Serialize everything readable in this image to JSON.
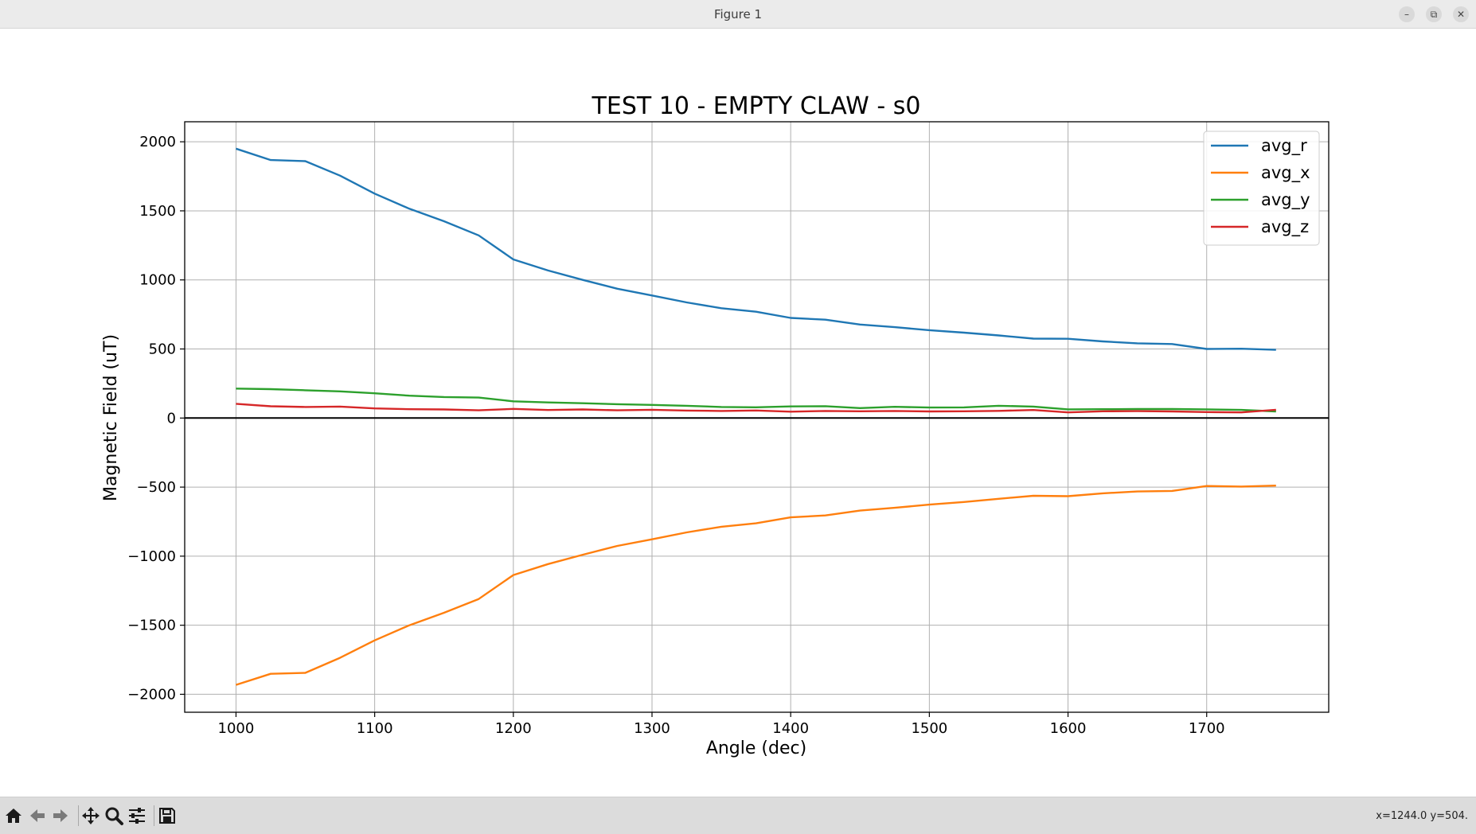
{
  "window": {
    "title": "Figure 1",
    "controls": {
      "minimize": "–",
      "maximize": "⧉",
      "close": "✕"
    }
  },
  "toolbar": {
    "buttons": [
      "home-icon",
      "back-icon",
      "forward-icon",
      "pan-icon",
      "zoom-icon",
      "configure-subplots-icon",
      "save-icon"
    ],
    "coords": "x=1244.0 y=504."
  },
  "chart_data": {
    "type": "line",
    "title": "TEST 10 - EMPTY CLAW - s0",
    "xlabel": "Angle (dec)",
    "ylabel": "Magnetic Field (uT)",
    "xlim": [
      963,
      1788
    ],
    "ylim": [
      -2130,
      2145
    ],
    "xticks": [
      1000,
      1100,
      1200,
      1300,
      1400,
      1500,
      1600,
      1700
    ],
    "yticks": [
      -2000,
      -1500,
      -1000,
      -500,
      0,
      500,
      1000,
      1500,
      2000
    ],
    "ytick_labels": [
      "−2000",
      "−1500",
      "−1000",
      "−500",
      "0",
      "500",
      "1000",
      "1500",
      "2000"
    ],
    "grid": true,
    "zero_line": true,
    "legend_position": "top-right",
    "x": [
      1000,
      1025,
      1050,
      1075,
      1100,
      1125,
      1150,
      1175,
      1200,
      1225,
      1250,
      1275,
      1300,
      1325,
      1350,
      1375,
      1400,
      1425,
      1450,
      1475,
      1500,
      1525,
      1550,
      1575,
      1600,
      1625,
      1650,
      1675,
      1700,
      1725,
      1750
    ],
    "series": [
      {
        "name": "avg_r",
        "color": "#1f77b4",
        "values": [
          1950,
          1868,
          1860,
          1755,
          1625,
          1515,
          1425,
          1322,
          1148,
          1068,
          1000,
          936,
          887,
          837,
          795,
          770,
          725,
          712,
          677,
          658,
          636,
          618,
          598,
          575,
          574,
          555,
          541,
          536,
          500,
          502,
          494
        ]
      },
      {
        "name": "avg_x",
        "color": "#ff7f0e",
        "values": [
          -1932,
          -1852,
          -1845,
          -1736,
          -1610,
          -1500,
          -1410,
          -1310,
          -1137,
          -1057,
          -990,
          -926,
          -878,
          -828,
          -787,
          -762,
          -719,
          -705,
          -670,
          -650,
          -627,
          -608,
          -585,
          -563,
          -566,
          -545,
          -532,
          -528,
          -492,
          -496,
          -489
        ]
      },
      {
        "name": "avg_y",
        "color": "#2ca02c",
        "values": [
          213,
          209,
          201,
          193,
          179,
          162,
          152,
          148,
          121,
          113,
          107,
          100,
          95,
          89,
          80,
          78,
          84,
          86,
          72,
          81,
          76,
          77,
          89,
          83,
          63,
          64,
          65,
          65,
          63,
          59,
          48
        ]
      },
      {
        "name": "avg_z",
        "color": "#d62728",
        "values": [
          103,
          85,
          80,
          83,
          70,
          64,
          62,
          56,
          66,
          58,
          62,
          56,
          60,
          54,
          51,
          55,
          46,
          51,
          49,
          51,
          48,
          49,
          52,
          58,
          41,
          49,
          50,
          48,
          43,
          41,
          60
        ]
      }
    ]
  }
}
